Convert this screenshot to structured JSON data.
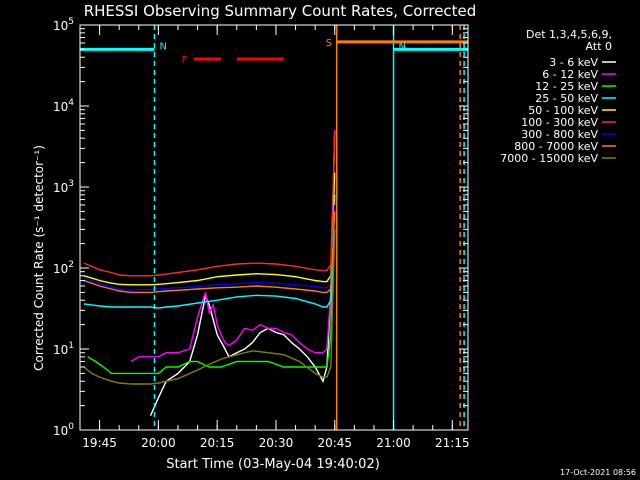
{
  "chart_data": {
    "type": "line",
    "title": "RHESSI Observing Summary Count Rates, Corrected",
    "xlabel": "Start Time (03-May-04 19:40:02)",
    "ylabel": "Corrected Count Rate (s⁻¹ detector⁻¹)",
    "yscale": "log",
    "ylim": [
      1,
      100000
    ],
    "xlim_minutes": [
      0,
      99
    ],
    "x_tick_labels": [
      "19:45",
      "20:00",
      "20:15",
      "20:30",
      "20:45",
      "21:00",
      "21:15"
    ],
    "x_tick_minutes": [
      5,
      20,
      35,
      50,
      65,
      80,
      95
    ],
    "y_tick_labels": [
      {
        "base": "10",
        "exp": "0",
        "value": 1
      },
      {
        "base": "10",
        "exp": "1",
        "value": 10
      },
      {
        "base": "10",
        "exp": "2",
        "value": 100
      },
      {
        "base": "10",
        "exp": "3",
        "value": 1000
      },
      {
        "base": "10",
        "exp": "4",
        "value": 10000
      },
      {
        "base": "10",
        "exp": "5",
        "value": 100000
      }
    ],
    "legend_header": [
      "Det 1,3,4,5,6,9,",
      "Att 0"
    ],
    "series": [
      {
        "name": "3 - 6 keV",
        "color": "#ffffff",
        "x": [
          18,
          20,
          22,
          25,
          28,
          30,
          32,
          33,
          35,
          37,
          38,
          40,
          42,
          44,
          46,
          48,
          50,
          52,
          54,
          56,
          58,
          60,
          62,
          63,
          64,
          65
        ],
        "y": [
          1.5,
          2.5,
          4,
          5,
          7,
          15,
          45,
          35,
          15,
          10,
          8,
          9,
          10,
          12,
          16,
          18,
          16,
          15,
          12,
          10,
          8,
          6,
          4,
          6,
          50,
          5000
        ]
      },
      {
        "name": "6 - 12 keV",
        "color": "#ff00ff",
        "x": [
          13,
          15,
          17,
          19,
          20,
          22,
          25,
          28,
          30,
          32,
          33,
          34,
          35,
          36,
          37,
          38,
          40,
          42,
          44,
          46,
          48,
          50,
          52,
          54,
          56,
          58,
          60,
          62,
          63,
          64,
          65
        ],
        "y": [
          7,
          8,
          8,
          8,
          8,
          9,
          9,
          10,
          25,
          50,
          28,
          35,
          20,
          15,
          12,
          11,
          13,
          18,
          17,
          20,
          18,
          18,
          16,
          15,
          12,
          10,
          9,
          9,
          10,
          50,
          5000
        ]
      },
      {
        "name": "12 - 25 keV",
        "color": "#00ff00",
        "x": [
          2,
          4,
          6,
          8,
          10,
          12,
          14,
          16,
          18,
          20,
          22,
          25,
          28,
          30,
          33,
          36,
          40,
          44,
          48,
          52,
          56,
          60,
          62,
          63,
          64,
          65
        ],
        "y": [
          8,
          7,
          6,
          5,
          5,
          5,
          5,
          5,
          5,
          5,
          6,
          6,
          7,
          7,
          6,
          6,
          7,
          7,
          7,
          6,
          6,
          6,
          6,
          6,
          15,
          800
        ]
      },
      {
        "name": "25 - 50 keV",
        "color": "#00ffff",
        "x": [
          1,
          3,
          5,
          8,
          10,
          13,
          15,
          18,
          20,
          22,
          25,
          30,
          35,
          40,
          45,
          50,
          55,
          60,
          62,
          63,
          64,
          65
        ],
        "y": [
          36,
          35,
          34,
          33,
          33,
          33,
          33,
          33,
          32,
          33,
          34,
          37,
          40,
          44,
          46,
          45,
          42,
          36,
          33,
          33,
          40,
          800
        ]
      },
      {
        "name": "50 - 100 keV",
        "color": "#ffff00",
        "x": [
          1,
          3,
          5,
          8,
          10,
          13,
          15,
          18,
          20,
          22,
          25,
          30,
          35,
          40,
          45,
          50,
          55,
          60,
          62,
          63,
          64,
          65
        ],
        "y": [
          80,
          75,
          70,
          65,
          63,
          62,
          62,
          62,
          63,
          64,
          66,
          70,
          78,
          82,
          85,
          83,
          78,
          70,
          68,
          68,
          80,
          1500
        ]
      },
      {
        "name": "100 - 300 keV",
        "color": "#ff2a2a",
        "x": [
          1,
          3,
          5,
          8,
          10,
          13,
          15,
          18,
          20,
          22,
          25,
          30,
          35,
          40,
          45,
          50,
          55,
          60,
          62,
          63,
          64,
          65
        ],
        "y": [
          115,
          105,
          95,
          88,
          82,
          80,
          80,
          80,
          82,
          84,
          88,
          95,
          105,
          112,
          115,
          112,
          105,
          95,
          93,
          93,
          110,
          4500
        ]
      },
      {
        "name": "300 - 800 keV",
        "color": "#0000ff",
        "x": [
          1,
          3,
          5,
          8,
          10,
          13,
          15,
          18,
          20,
          22,
          25,
          30,
          35,
          40,
          45,
          50,
          55,
          60,
          62,
          63,
          64,
          65
        ],
        "y": [
          75,
          70,
          65,
          58,
          55,
          53,
          54,
          54,
          55,
          56,
          57,
          59,
          62,
          64,
          66,
          65,
          62,
          59,
          57,
          57,
          65,
          600
        ]
      },
      {
        "name": "800 - 7000 keV",
        "color": "#ff7f00",
        "x": [
          1,
          3,
          5,
          8,
          10,
          13,
          15,
          18,
          20,
          22,
          25,
          30,
          35,
          40,
          45,
          50,
          55,
          60,
          62,
          63,
          64,
          65
        ],
        "y": [
          70,
          65,
          60,
          55,
          52,
          50,
          50,
          50,
          51,
          52,
          53,
          55,
          57,
          58,
          60,
          58,
          55,
          52,
          50,
          50,
          55,
          500
        ]
      },
      {
        "name": "7000 - 15000 keV",
        "color": "#808000",
        "x": [
          1,
          3,
          5,
          8,
          10,
          13,
          15,
          18,
          20,
          22,
          25,
          30,
          33,
          36,
          40,
          44,
          48,
          52,
          56,
          60,
          62,
          63,
          64,
          65
        ],
        "y": [
          6,
          5,
          4.5,
          4,
          3.8,
          3.7,
          3.7,
          3.7,
          3.8,
          4,
          4.3,
          5.5,
          6.5,
          7.5,
          8.5,
          9.5,
          9,
          8.5,
          7,
          5,
          4.5,
          4.5,
          6,
          300
        ]
      }
    ],
    "flags": [
      {
        "label": "N",
        "color": "#00ffff",
        "level": 50000,
        "x_start": 0,
        "x_end": 19
      },
      {
        "label": "N",
        "color": "#00ffff",
        "level": 50000,
        "x_start": 80,
        "x_end": 99
      },
      {
        "label": "F",
        "color": "#ff0000",
        "level": 38000,
        "x_segments": [
          [
            29,
            36
          ],
          [
            40,
            52
          ]
        ]
      },
      {
        "label": "S",
        "color": "#ff7f00",
        "level": 62000,
        "x_start": 65.5,
        "x_end": 99
      }
    ],
    "vlines": [
      {
        "minute": 19,
        "color": "#00ffff",
        "style": "dashed"
      },
      {
        "minute": 65.5,
        "color": "#ff7f00",
        "style": "solid"
      },
      {
        "minute": 80,
        "color": "#00ffff",
        "style": "solid"
      },
      {
        "minute": 97,
        "color": "#ff7f00",
        "style": "dashed"
      },
      {
        "minute": 98,
        "color": "#00ffff",
        "style": "dashed"
      }
    ],
    "grid": false,
    "legend_position": "right"
  },
  "footer": {
    "timestamp": "17-Oct-2021 08:56"
  }
}
